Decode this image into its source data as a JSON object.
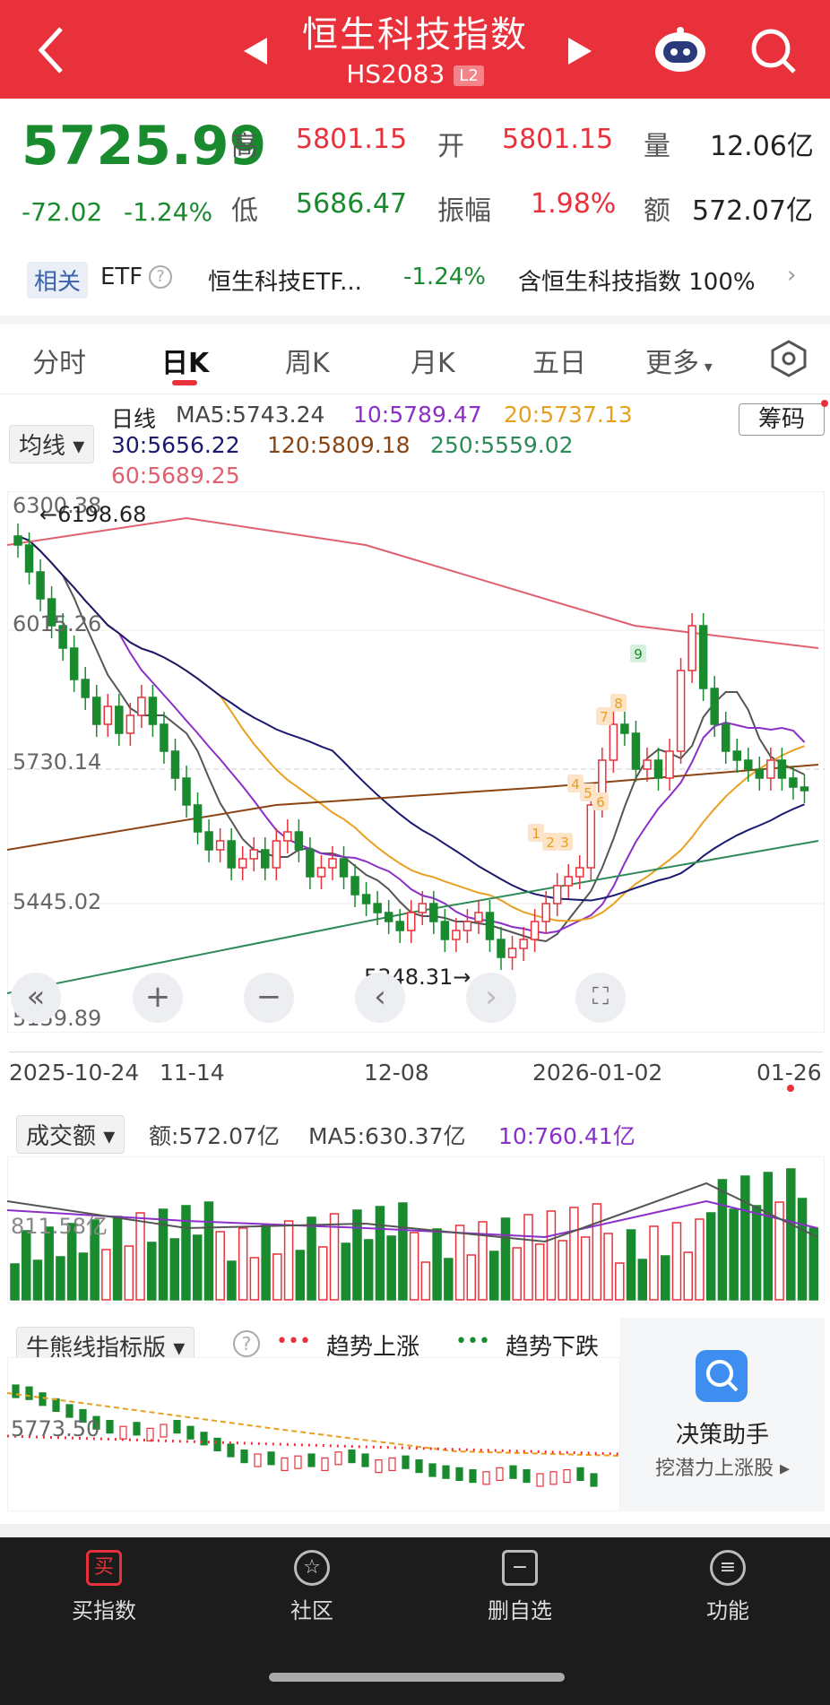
{
  "header": {
    "title": "恒生科技指数",
    "code": "HS2083",
    "level_badge": "L2"
  },
  "quote": {
    "last": "5725.99",
    "change": "-72.02",
    "change_pct": "-1.24%",
    "high_label": "高",
    "high": "5801.15",
    "open_label": "开",
    "open": "5801.15",
    "volume_label": "量",
    "volume": "12.06亿",
    "low_label": "低",
    "low": "5686.47",
    "amplitude_label": "振幅",
    "amplitude": "1.98%",
    "amount_label": "额",
    "amount": "572.07亿"
  },
  "etf": {
    "tag": "相关",
    "etf_label": "ETF",
    "name": "恒生科技ETF...",
    "change_pct": "-1.24%",
    "holding": "含恒生科技指数 100%"
  },
  "tabs": [
    "分时",
    "日K",
    "周K",
    "月K",
    "五日",
    "更多"
  ],
  "main_chart": {
    "indicator_select": "均线",
    "chip_button": "筹码",
    "period": "日线",
    "ma": [
      {
        "label": "MA5:5743.24",
        "color": "#555555"
      },
      {
        "label": "10:5789.47",
        "color": "#8b2fc9"
      },
      {
        "label": "20:5737.13",
        "color": "#e8a020"
      },
      {
        "label": "30:5656.22",
        "color": "#1a1a6e"
      },
      {
        "label": "120:5809.18",
        "color": "#8b4513"
      },
      {
        "label": "250:5559.02",
        "color": "#2e8b57"
      },
      {
        "label": "60:5689.25",
        "color": "#e06070"
      }
    ],
    "y_ticks": [
      "6300.38",
      "6015.26",
      "5730.14",
      "5445.02",
      "5159.89"
    ],
    "high_mark": "←6198.68",
    "low_mark": "5348.31→",
    "dates": [
      "2025-10-24",
      "11-14",
      "12-08",
      "2026-01-02",
      "01-26"
    ],
    "seq_marks": [
      "1",
      "2",
      "3",
      "4",
      "5",
      "6",
      "7",
      "8",
      "9"
    ]
  },
  "volume_chart": {
    "indicator_select": "成交额",
    "amount": "额:572.07亿",
    "ma5": "MA5:630.37亿",
    "ma10": "10:760.41亿",
    "y_tick": "811.58亿"
  },
  "bull_bear": {
    "indicator_select": "牛熊线指标版",
    "up_label": "趋势上涨",
    "down_label": "趋势下跌",
    "y_tick": "5773.50",
    "assistant_title": "决策助手",
    "assistant_sub": "挖潜力上涨股"
  },
  "bottom_nav": [
    "买指数",
    "社区",
    "删自选",
    "功能"
  ],
  "colors": {
    "up": "#e8313a",
    "down": "#1a8a2e",
    "header": "#e8313a"
  }
}
